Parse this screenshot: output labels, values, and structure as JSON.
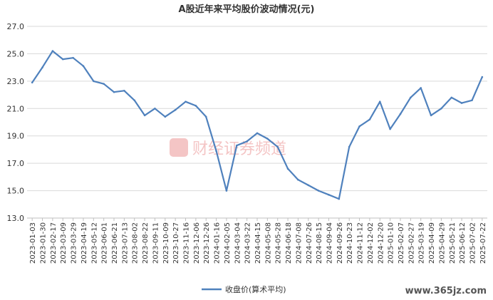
{
  "chart_data": {
    "type": "line",
    "title": "A股近年来平均股价波动情况(元)",
    "xlabel": "",
    "ylabel": "",
    "ylim": [
      13.0,
      27.0
    ],
    "yticks": [
      "27.0",
      "25.0",
      "23.0",
      "21.0",
      "19.0",
      "17.0",
      "15.0",
      "13.0"
    ],
    "ytick_values": [
      27,
      25,
      23,
      21,
      19,
      17,
      15,
      13
    ],
    "x_tick_labels": [
      "2023-01-03",
      "2023-01-30",
      "2023-02-17",
      "2023-03-09",
      "2023-03-29",
      "2023-04-19",
      "2023-05-12",
      "2023-06-01",
      "2023-06-21",
      "2023-07-13",
      "2023-08-02",
      "2023-08-22",
      "2023-09-11",
      "2023-10-09",
      "2023-10-27",
      "2023-11-16",
      "2023-12-06",
      "2023-12-26",
      "2024-01-16",
      "2024-02-05",
      "2024-03-04",
      "2024-03-22",
      "2024-04-15",
      "2024-05-08",
      "2024-05-28",
      "2024-06-18",
      "2024-07-08",
      "2024-07-26",
      "2024-08-15",
      "2024-09-04",
      "2024-09-26",
      "2024-10-23",
      "2024-11-12",
      "2024-12-02",
      "2024-12-20",
      "2025-01-10",
      "2025-02-07",
      "2025-02-27",
      "2025-03-19",
      "2025-04-09",
      "2025-04-29",
      "2025-05-21",
      "2025-06-12",
      "2025-07-02",
      "2025-07-22"
    ],
    "legend_position": "bottom",
    "grid": true,
    "series": [
      {
        "name": "收盘价(算术平均)",
        "color": "#4f81bd",
        "x": [
          "2023-01-03",
          "2023-01-30",
          "2023-02-17",
          "2023-03-09",
          "2023-03-29",
          "2023-04-19",
          "2023-05-12",
          "2023-06-01",
          "2023-06-21",
          "2023-07-13",
          "2023-08-02",
          "2023-08-22",
          "2023-09-11",
          "2023-10-09",
          "2023-10-27",
          "2023-11-16",
          "2023-12-06",
          "2023-12-26",
          "2024-01-16",
          "2024-02-05",
          "2024-03-04",
          "2024-03-22",
          "2024-04-15",
          "2024-05-08",
          "2024-05-28",
          "2024-06-18",
          "2024-07-08",
          "2024-07-26",
          "2024-08-15",
          "2024-09-04",
          "2024-09-26",
          "2024-10-23",
          "2024-11-12",
          "2024-12-02",
          "2024-12-20",
          "2025-01-10",
          "2025-02-07",
          "2025-02-27",
          "2025-03-19",
          "2025-04-09",
          "2025-04-29",
          "2025-05-21",
          "2025-06-12",
          "2025-07-02",
          "2025-07-22"
        ],
        "values": [
          22.9,
          24.0,
          25.2,
          24.6,
          24.7,
          24.1,
          23.0,
          22.8,
          22.2,
          22.3,
          21.6,
          20.5,
          21.0,
          20.4,
          20.9,
          21.5,
          21.2,
          20.4,
          17.9,
          15.0,
          18.3,
          18.6,
          19.2,
          18.8,
          18.2,
          16.6,
          15.8,
          15.4,
          15.0,
          14.7,
          14.4,
          18.2,
          19.7,
          20.2,
          21.5,
          19.5,
          20.6,
          21.8,
          22.5,
          20.5,
          21.0,
          21.8,
          21.4,
          21.6,
          23.3
        ]
      }
    ]
  },
  "legend": {
    "label": "收盘价(算术平均)"
  },
  "watermark": {
    "text": "财经证券频道"
  },
  "site": {
    "text": "www.365jz.com"
  }
}
